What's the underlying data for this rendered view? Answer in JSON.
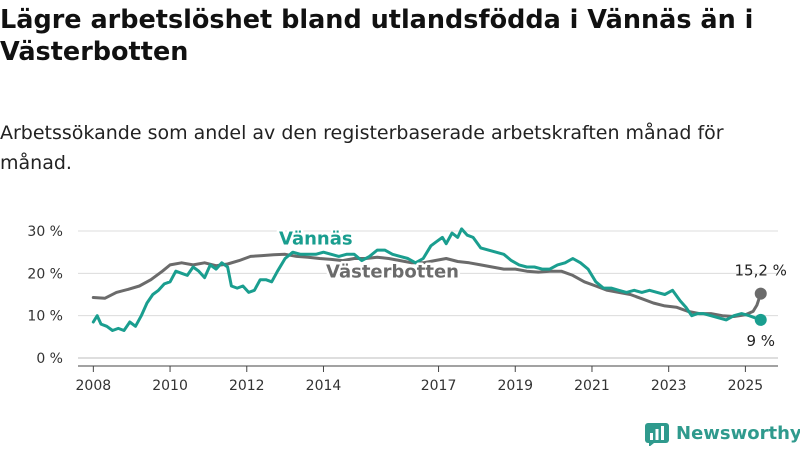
{
  "title": "Lägre arbetslöshet bland utlandsfödda i Vännäs än i Västerbotten",
  "subtitle": "Arbetssökande som andel av den registerbaserade arbetskraften månad för månad.",
  "brand": {
    "name": "Newsworthy",
    "color": "#2f9a8d"
  },
  "chart_data": {
    "type": "line",
    "title": "Lägre arbetslöshet bland utlandsfödda i Vännäs än i Västerbotten",
    "subtitle": "Arbetssökande som andel av den registerbaserade arbetskraften månad för månad.",
    "xlabel": "",
    "ylabel": "",
    "xlim": [
      2007.6,
      2025.85
    ],
    "ylim": [
      0,
      30
    ],
    "grid": true,
    "y_ticks": [
      0,
      10,
      20,
      30
    ],
    "y_tick_labels": [
      "0 %",
      "10 %",
      "20 %",
      "30 %"
    ],
    "x_ticks": [
      2008,
      2010,
      2012,
      2014,
      2017,
      2019,
      2021,
      2023,
      2025
    ],
    "x_tick_labels": [
      "2008",
      "2010",
      "2012",
      "2014",
      "2017",
      "2019",
      "2021",
      "2023",
      "2025"
    ],
    "legend": "inline labels",
    "series": [
      {
        "name": "Västerbotten",
        "color": "#6b6b6b",
        "label_color": "#6b6b6b",
        "end_label": "15,2 %",
        "points": [
          [
            2008.0,
            14.3
          ],
          [
            2008.3,
            14.1
          ],
          [
            2008.6,
            15.5
          ],
          [
            2008.9,
            16.2
          ],
          [
            2009.2,
            17.0
          ],
          [
            2009.5,
            18.5
          ],
          [
            2009.8,
            20.5
          ],
          [
            2010.0,
            22.0
          ],
          [
            2010.3,
            22.5
          ],
          [
            2010.6,
            22.0
          ],
          [
            2010.9,
            22.5
          ],
          [
            2011.2,
            21.8
          ],
          [
            2011.5,
            22.2
          ],
          [
            2011.8,
            23.0
          ],
          [
            2012.1,
            24.0
          ],
          [
            2012.4,
            24.2
          ],
          [
            2012.7,
            24.4
          ],
          [
            2013.0,
            24.5
          ],
          [
            2013.3,
            24.0
          ],
          [
            2013.6,
            23.8
          ],
          [
            2013.9,
            23.5
          ],
          [
            2014.2,
            23.3
          ],
          [
            2014.5,
            23.0
          ],
          [
            2014.8,
            23.5
          ],
          [
            2015.1,
            23.5
          ],
          [
            2015.4,
            23.8
          ],
          [
            2015.7,
            23.5
          ],
          [
            2016.0,
            23.0
          ],
          [
            2016.3,
            22.5
          ],
          [
            2016.6,
            22.5
          ],
          [
            2016.9,
            23.0
          ],
          [
            2017.2,
            23.5
          ],
          [
            2017.5,
            22.8
          ],
          [
            2017.8,
            22.5
          ],
          [
            2018.1,
            22.0
          ],
          [
            2018.4,
            21.5
          ],
          [
            2018.7,
            21.0
          ],
          [
            2019.0,
            21.0
          ],
          [
            2019.3,
            20.5
          ],
          [
            2019.6,
            20.3
          ],
          [
            2019.9,
            20.5
          ],
          [
            2020.2,
            20.5
          ],
          [
            2020.5,
            19.5
          ],
          [
            2020.8,
            18.0
          ],
          [
            2021.1,
            17.0
          ],
          [
            2021.4,
            16.0
          ],
          [
            2021.7,
            15.5
          ],
          [
            2022.0,
            15.0
          ],
          [
            2022.3,
            14.0
          ],
          [
            2022.6,
            13.0
          ],
          [
            2022.9,
            12.3
          ],
          [
            2023.2,
            12.0
          ],
          [
            2023.5,
            11.0
          ],
          [
            2023.8,
            10.5
          ],
          [
            2024.1,
            10.5
          ],
          [
            2024.4,
            10.0
          ],
          [
            2024.7,
            9.8
          ],
          [
            2025.0,
            10.2
          ],
          [
            2025.2,
            11.0
          ],
          [
            2025.3,
            12.5
          ],
          [
            2025.4,
            15.2
          ]
        ]
      },
      {
        "name": "Vännäs",
        "color": "#1a9e8f",
        "label_color": "#1a9e8f",
        "end_label": "9 %",
        "points": [
          [
            2008.0,
            8.5
          ],
          [
            2008.1,
            10.0
          ],
          [
            2008.2,
            8.0
          ],
          [
            2008.35,
            7.5
          ],
          [
            2008.5,
            6.5
          ],
          [
            2008.65,
            7.0
          ],
          [
            2008.8,
            6.5
          ],
          [
            2008.95,
            8.5
          ],
          [
            2009.1,
            7.5
          ],
          [
            2009.25,
            10.0
          ],
          [
            2009.4,
            13.0
          ],
          [
            2009.55,
            15.0
          ],
          [
            2009.7,
            16.0
          ],
          [
            2009.85,
            17.5
          ],
          [
            2010.0,
            18.0
          ],
          [
            2010.15,
            20.5
          ],
          [
            2010.3,
            20.0
          ],
          [
            2010.45,
            19.5
          ],
          [
            2010.6,
            21.5
          ],
          [
            2010.75,
            20.5
          ],
          [
            2010.9,
            19.0
          ],
          [
            2011.05,
            22.0
          ],
          [
            2011.2,
            21.0
          ],
          [
            2011.35,
            22.5
          ],
          [
            2011.5,
            21.5
          ],
          [
            2011.6,
            17.0
          ],
          [
            2011.75,
            16.5
          ],
          [
            2011.9,
            17.0
          ],
          [
            2012.05,
            15.5
          ],
          [
            2012.2,
            16.0
          ],
          [
            2012.35,
            18.5
          ],
          [
            2012.5,
            18.5
          ],
          [
            2012.65,
            18.0
          ],
          [
            2012.8,
            20.5
          ],
          [
            2013.0,
            23.5
          ],
          [
            2013.2,
            25.0
          ],
          [
            2013.4,
            24.5
          ],
          [
            2013.6,
            24.5
          ],
          [
            2013.8,
            24.5
          ],
          [
            2014.0,
            25.0
          ],
          [
            2014.2,
            24.5
          ],
          [
            2014.4,
            24.0
          ],
          [
            2014.6,
            24.5
          ],
          [
            2014.8,
            24.5
          ],
          [
            2015.0,
            23.0
          ],
          [
            2015.2,
            24.0
          ],
          [
            2015.4,
            25.5
          ],
          [
            2015.6,
            25.5
          ],
          [
            2015.8,
            24.5
          ],
          [
            2016.0,
            24.0
          ],
          [
            2016.2,
            23.5
          ],
          [
            2016.4,
            22.5
          ],
          [
            2016.6,
            23.5
          ],
          [
            2016.8,
            26.5
          ],
          [
            2016.95,
            27.5
          ],
          [
            2017.1,
            28.5
          ],
          [
            2017.2,
            27.0
          ],
          [
            2017.35,
            29.5
          ],
          [
            2017.5,
            28.5
          ],
          [
            2017.6,
            30.5
          ],
          [
            2017.75,
            29.0
          ],
          [
            2017.9,
            28.5
          ],
          [
            2018.1,
            26.0
          ],
          [
            2018.3,
            25.5
          ],
          [
            2018.5,
            25.0
          ],
          [
            2018.7,
            24.5
          ],
          [
            2018.9,
            23.0
          ],
          [
            2019.1,
            22.0
          ],
          [
            2019.3,
            21.5
          ],
          [
            2019.5,
            21.5
          ],
          [
            2019.7,
            21.0
          ],
          [
            2019.9,
            21.0
          ],
          [
            2020.1,
            22.0
          ],
          [
            2020.3,
            22.5
          ],
          [
            2020.5,
            23.5
          ],
          [
            2020.7,
            22.5
          ],
          [
            2020.9,
            21.0
          ],
          [
            2021.1,
            18.0
          ],
          [
            2021.3,
            16.5
          ],
          [
            2021.5,
            16.5
          ],
          [
            2021.7,
            16.0
          ],
          [
            2021.9,
            15.5
          ],
          [
            2022.1,
            16.0
          ],
          [
            2022.3,
            15.5
          ],
          [
            2022.5,
            16.0
          ],
          [
            2022.7,
            15.5
          ],
          [
            2022.9,
            15.0
          ],
          [
            2023.1,
            16.0
          ],
          [
            2023.3,
            13.5
          ],
          [
            2023.45,
            12.0
          ],
          [
            2023.6,
            10.0
          ],
          [
            2023.75,
            10.5
          ],
          [
            2023.9,
            10.5
          ],
          [
            2024.1,
            10.0
          ],
          [
            2024.3,
            9.5
          ],
          [
            2024.5,
            9.0
          ],
          [
            2024.7,
            10.0
          ],
          [
            2024.9,
            10.5
          ],
          [
            2025.1,
            10.0
          ],
          [
            2025.25,
            9.5
          ],
          [
            2025.4,
            9.0
          ]
        ]
      }
    ]
  }
}
